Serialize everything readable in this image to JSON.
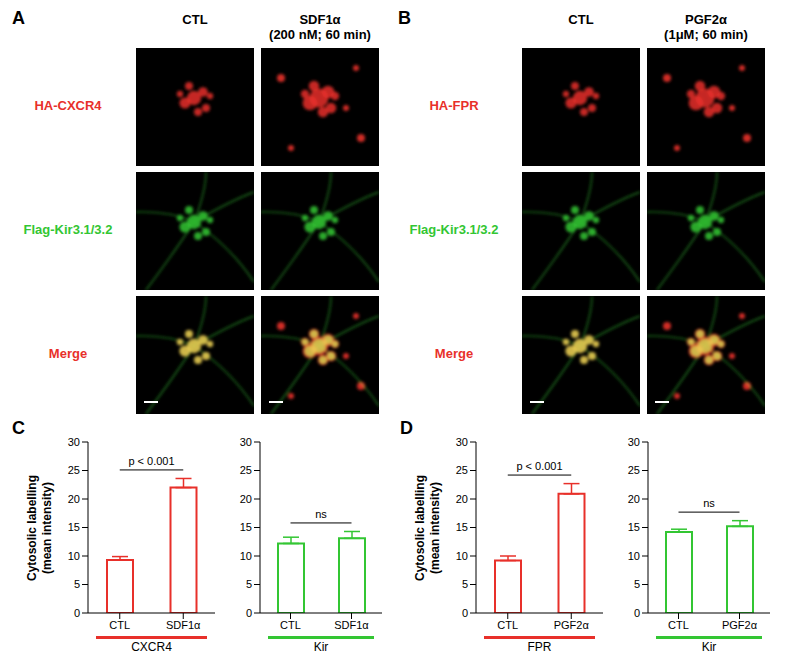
{
  "image_panels": [
    {
      "label": "A",
      "columns": [
        [
          "CTL"
        ],
        [
          "SDF1α",
          "(200 nM; 60 min)"
        ]
      ],
      "rows": [
        "HA-CXCR4",
        "Flag-Kir3.1/3.2",
        "Merge"
      ]
    },
    {
      "label": "B",
      "columns": [
        [
          "CTL"
        ],
        [
          "PGF2α",
          "(1μM; 60 min)"
        ]
      ],
      "rows": [
        "HA-FPR",
        "Flag-Kir3.1/3.2",
        "Merge"
      ]
    }
  ],
  "chart_data": [
    {
      "panel": "C",
      "type": "bar",
      "ylabel": [
        "Cytosolic labelling",
        "(mean intensity)"
      ],
      "categories": [
        "CTL",
        "SDF1α"
      ],
      "values": [
        9.3,
        22.0
      ],
      "errors": [
        0.6,
        1.6
      ],
      "color": "#e8302a",
      "ylim": [
        0,
        30
      ],
      "yticks": [
        0,
        5,
        10,
        15,
        20,
        25,
        30
      ],
      "annotation": "p < 0.001",
      "group_label": "CXCR4"
    },
    {
      "type": "bar",
      "categories": [
        "CTL",
        "SDF1α"
      ],
      "values": [
        12.2,
        13.1
      ],
      "errors": [
        1.1,
        1.2
      ],
      "color": "#33c633",
      "ylim": [
        0,
        30
      ],
      "yticks": [
        0,
        5,
        10,
        15,
        20,
        25,
        30
      ],
      "annotation": "ns",
      "group_label": "Kir"
    },
    {
      "panel": "D",
      "type": "bar",
      "ylabel": [
        "Cytosolic labelling",
        "(mean intensity)"
      ],
      "categories": [
        "CTL",
        "PGF2α"
      ],
      "values": [
        9.2,
        20.9
      ],
      "errors": [
        0.8,
        1.8
      ],
      "color": "#e8302a",
      "ylim": [
        0,
        30
      ],
      "yticks": [
        0,
        5,
        10,
        15,
        20,
        25,
        30
      ],
      "annotation": "p < 0.001",
      "group_label": "FPR"
    },
    {
      "type": "bar",
      "categories": [
        "CTL",
        "PGF2α"
      ],
      "values": [
        14.2,
        15.2
      ],
      "errors": [
        0.5,
        1.0
      ],
      "color": "#33c633",
      "ylim": [
        0,
        30
      ],
      "yticks": [
        0,
        5,
        10,
        15,
        20,
        25,
        30
      ],
      "annotation": "ns",
      "group_label": "Kir"
    }
  ]
}
